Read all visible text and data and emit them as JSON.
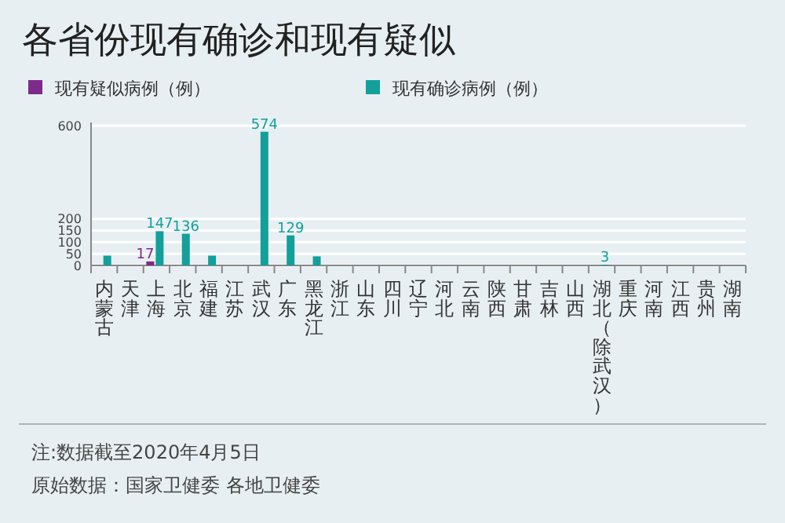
{
  "chart_data": {
    "type": "bar",
    "title": "各省份现有确诊和现有疑似",
    "categories": [
      "内蒙古",
      "天津",
      "上海",
      "北京",
      "福建",
      "江苏",
      "武汉",
      "广东",
      "黑龙江",
      "浙江",
      "山东",
      "四川",
      "辽宁",
      "河北",
      "云南",
      "陕西",
      "甘肃",
      "吉林",
      "山西",
      "湖北（除武汉）",
      "重庆",
      "河南",
      "江西",
      "贵州",
      "湖南"
    ],
    "series": [
      {
        "name": "现有疑似病例（例）",
        "color": "#7d2a8a",
        "values": [
          null,
          null,
          17,
          null,
          null,
          null,
          null,
          null,
          null,
          null,
          null,
          null,
          null,
          null,
          null,
          null,
          null,
          null,
          null,
          null,
          null,
          null,
          null,
          null,
          null
        ],
        "value_labels": [
          null,
          null,
          "17",
          null,
          null,
          null,
          null,
          null,
          null,
          null,
          null,
          null,
          null,
          null,
          null,
          null,
          null,
          null,
          null,
          null,
          null,
          null,
          null,
          null,
          null
        ]
      },
      {
        "name": "现有确诊病例（例）",
        "color": "#13a09b",
        "values": [
          42,
          null,
          147,
          136,
          42,
          null,
          574,
          129,
          39,
          null,
          null,
          null,
          null,
          null,
          null,
          null,
          null,
          null,
          null,
          3,
          null,
          null,
          null,
          null,
          null
        ],
        "value_labels": [
          null,
          null,
          "147",
          "136",
          null,
          null,
          "574",
          "129",
          null,
          null,
          null,
          null,
          null,
          null,
          null,
          null,
          null,
          null,
          null,
          "3",
          null,
          null,
          null,
          null,
          null
        ]
      }
    ],
    "ylim": [
      0,
      600
    ],
    "yticks": [
      0,
      50,
      100,
      150,
      200,
      600
    ],
    "grid": "y",
    "legend": "top left",
    "annotations": [
      "注:数据截至2020年4月5日",
      "原始数据：国家卫健委 各地卫健委"
    ]
  }
}
